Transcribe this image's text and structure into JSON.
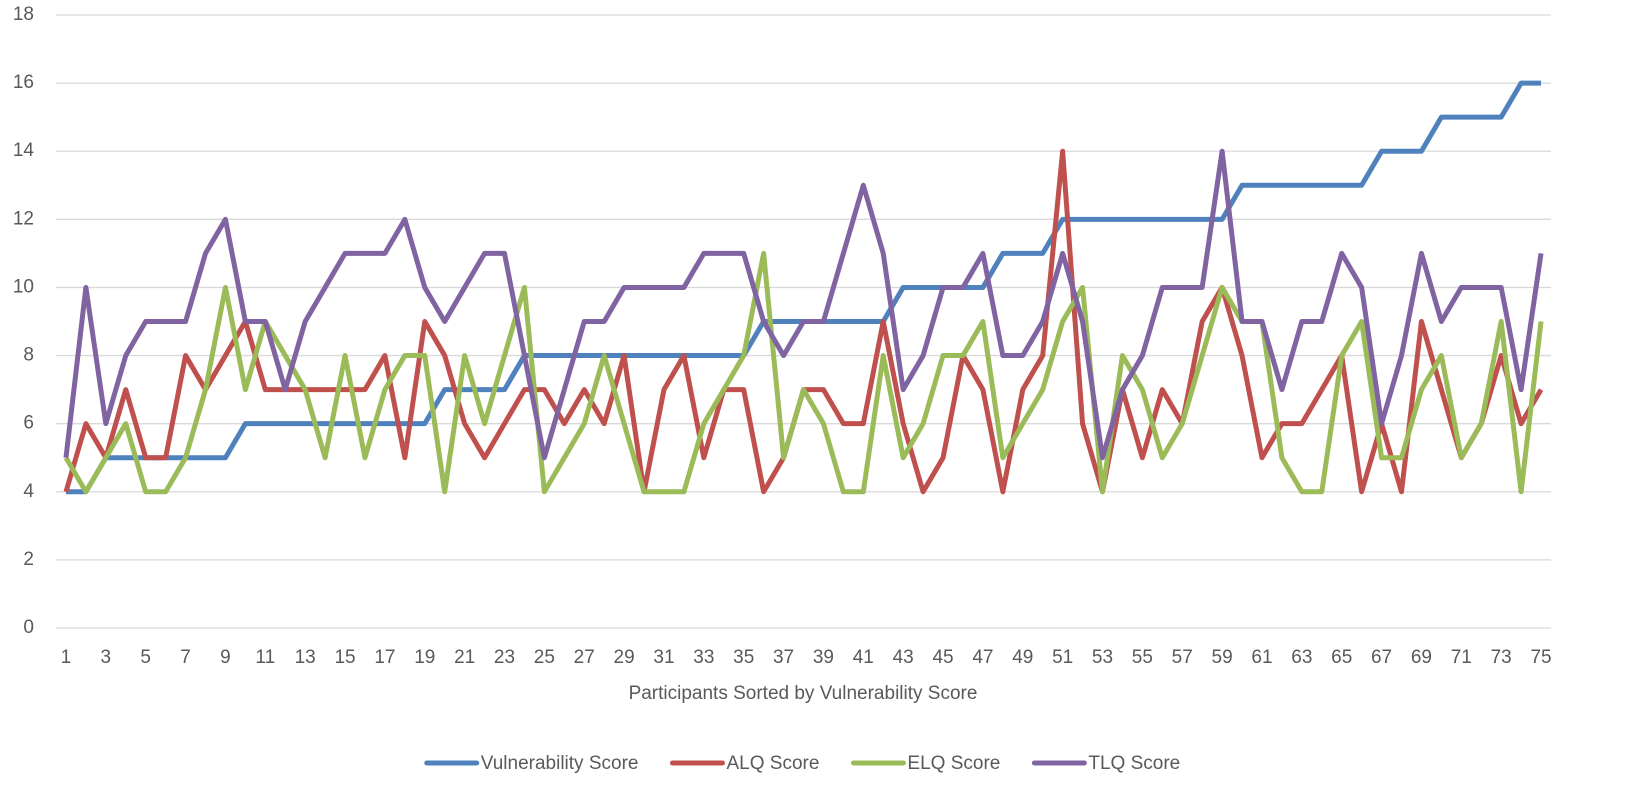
{
  "chart_data": {
    "type": "line",
    "x_label": "Participants Sorted by Vulnerability Score",
    "x": [
      1,
      2,
      3,
      4,
      5,
      6,
      7,
      8,
      9,
      10,
      11,
      12,
      13,
      14,
      15,
      16,
      17,
      18,
      19,
      20,
      21,
      22,
      23,
      24,
      25,
      26,
      27,
      28,
      29,
      30,
      31,
      32,
      33,
      34,
      35,
      36,
      37,
      38,
      39,
      40,
      41,
      42,
      43,
      44,
      45,
      46,
      47,
      48,
      49,
      50,
      51,
      52,
      53,
      54,
      55,
      56,
      57,
      58,
      59,
      60,
      61,
      62,
      63,
      64,
      65,
      66,
      67,
      68,
      69,
      70,
      71,
      72,
      73,
      74,
      75
    ],
    "xlim": [
      0.5,
      75.5
    ],
    "xticks": [
      1,
      3,
      5,
      7,
      9,
      11,
      13,
      15,
      17,
      19,
      21,
      23,
      25,
      27,
      29,
      31,
      33,
      35,
      37,
      39,
      41,
      43,
      45,
      47,
      49,
      51,
      53,
      55,
      57,
      59,
      61,
      63,
      65,
      67,
      69,
      71,
      73,
      75
    ],
    "ylim": [
      0,
      18
    ],
    "yticks": [
      0,
      2,
      4,
      6,
      8,
      10,
      12,
      14,
      16,
      18
    ],
    "grid": true,
    "legend": "bottom",
    "series": [
      {
        "name": "Vulnerability Score",
        "color": "#4f81bd",
        "values": [
          4,
          4,
          5,
          5,
          5,
          5,
          5,
          5,
          5,
          6,
          6,
          6,
          6,
          6,
          6,
          6,
          6,
          6,
          6,
          7,
          7,
          7,
          7,
          8,
          8,
          8,
          8,
          8,
          8,
          8,
          8,
          8,
          8,
          8,
          8,
          9,
          9,
          9,
          9,
          9,
          9,
          9,
          10,
          10,
          10,
          10,
          10,
          11,
          11,
          11,
          12,
          12,
          12,
          12,
          12,
          12,
          12,
          12,
          12,
          13,
          13,
          13,
          13,
          13,
          13,
          13,
          14,
          14,
          14,
          15,
          15,
          15,
          15,
          16,
          16
        ]
      },
      {
        "name": "ALQ Score",
        "color": "#c0504d",
        "values": [
          4,
          6,
          5,
          7,
          5,
          5,
          8,
          7,
          8,
          9,
          7,
          7,
          7,
          7,
          7,
          7,
          8,
          5,
          9,
          8,
          6,
          5,
          6,
          7,
          7,
          6,
          7,
          6,
          8,
          4,
          7,
          8,
          5,
          7,
          7,
          4,
          5,
          7,
          7,
          6,
          6,
          9,
          6,
          4,
          5,
          8,
          7,
          4,
          7,
          8,
          14,
          6,
          4,
          7,
          5,
          7,
          6,
          9,
          10,
          8,
          5,
          6,
          6,
          7,
          8,
          4,
          6,
          4,
          9,
          7,
          5,
          6,
          8,
          6,
          7
        ]
      },
      {
        "name": "ELQ Score",
        "color": "#9bbb59",
        "values": [
          5,
          4,
          5,
          6,
          4,
          4,
          5,
          7,
          10,
          7,
          9,
          8,
          7,
          5,
          8,
          5,
          7,
          8,
          8,
          4,
          8,
          6,
          8,
          10,
          4,
          5,
          6,
          8,
          6,
          4,
          4,
          4,
          6,
          7,
          8,
          11,
          5,
          7,
          6,
          4,
          4,
          8,
          5,
          6,
          8,
          8,
          9,
          5,
          6,
          7,
          9,
          10,
          4,
          8,
          7,
          5,
          6,
          8,
          10,
          9,
          9,
          5,
          4,
          4,
          8,
          9,
          5,
          5,
          7,
          8,
          5,
          6,
          9,
          4,
          9
        ]
      },
      {
        "name": "TLQ Score",
        "color": "#8064a2",
        "values": [
          5,
          10,
          6,
          8,
          9,
          9,
          9,
          11,
          12,
          9,
          9,
          7,
          9,
          10,
          11,
          11,
          11,
          12,
          10,
          9,
          10,
          11,
          11,
          8,
          5,
          7,
          9,
          9,
          10,
          10,
          10,
          10,
          11,
          11,
          11,
          9,
          8,
          9,
          9,
          11,
          13,
          11,
          7,
          8,
          10,
          10,
          11,
          8,
          8,
          9,
          11,
          9,
          5,
          7,
          8,
          10,
          10,
          10,
          14,
          9,
          9,
          7,
          9,
          9,
          11,
          10,
          6,
          8,
          11,
          9,
          10,
          10,
          10,
          7,
          11
        ]
      }
    ]
  }
}
